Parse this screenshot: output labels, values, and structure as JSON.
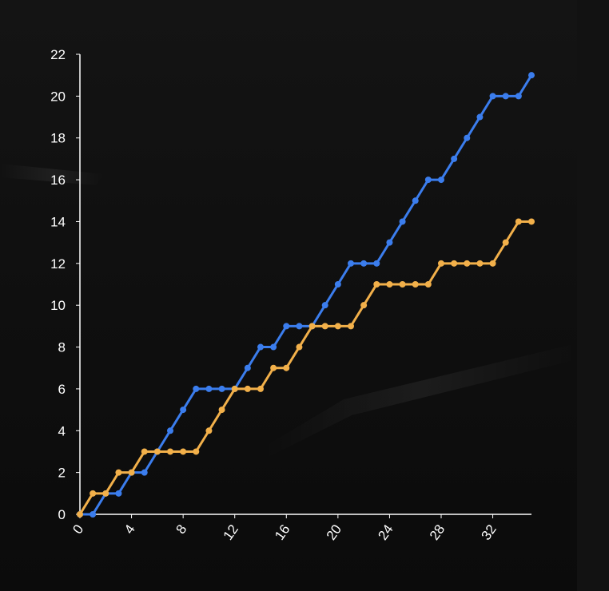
{
  "chart_data": {
    "type": "line",
    "title": "",
    "xlabel": "",
    "ylabel": "",
    "xlim": [
      0,
      35
    ],
    "ylim": [
      0,
      22
    ],
    "x_ticks": [
      "0",
      "4",
      "8",
      "12",
      "16",
      "20",
      "24",
      "28",
      "32"
    ],
    "y_ticks": [
      "0",
      "2",
      "4",
      "6",
      "8",
      "10",
      "12",
      "14",
      "16",
      "18",
      "20",
      "22"
    ],
    "grid": false,
    "x": [
      0,
      1,
      2,
      3,
      4,
      5,
      6,
      7,
      8,
      9,
      10,
      11,
      12,
      13,
      14,
      15,
      16,
      17,
      18,
      19,
      20,
      21,
      22,
      23,
      24,
      25,
      26,
      27,
      28,
      29,
      30,
      31,
      32,
      33,
      34,
      35
    ],
    "series": [
      {
        "color": "#3b7ded",
        "values": [
          0,
          0,
          1,
          1,
          2,
          2,
          3,
          4,
          5,
          6,
          6,
          6,
          6,
          7,
          8,
          8,
          9,
          9,
          9,
          10,
          11,
          12,
          12,
          12,
          13,
          14,
          15,
          16,
          16,
          17,
          18,
          19,
          20,
          20,
          20,
          21
        ]
      },
      {
        "color": "#f2b04a",
        "values": [
          0,
          1,
          1,
          2,
          2,
          3,
          3,
          3,
          3,
          3,
          4,
          5,
          6,
          6,
          6,
          7,
          7,
          8,
          9,
          9,
          9,
          9,
          10,
          11,
          11,
          11,
          11,
          11,
          12,
          12,
          12,
          12,
          12,
          13,
          14,
          14
        ]
      }
    ]
  },
  "colors": {
    "axis": "#ffffff",
    "label": "#ffffff",
    "background": "#0e0e0e"
  }
}
